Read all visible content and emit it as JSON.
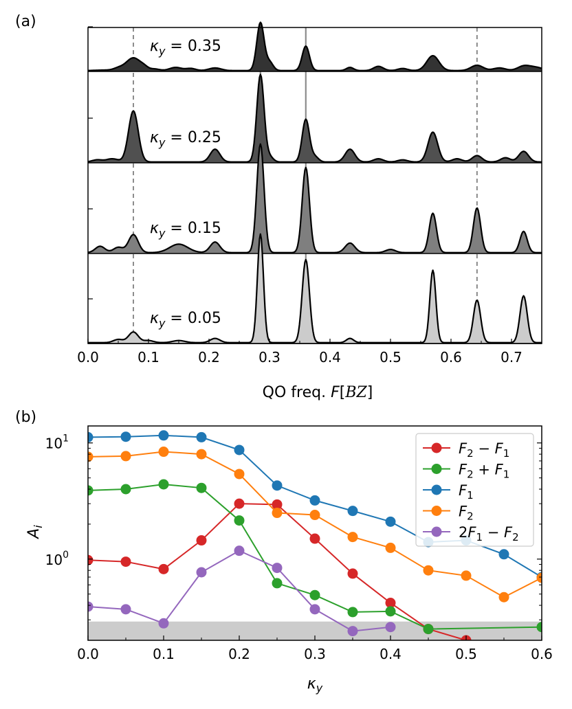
{
  "chart_data": [
    {
      "type": "area",
      "panel_label": "(a)",
      "xlabel": "QO freq. F[BZ]",
      "xlabel_parts": {
        "prefix": "QO freq. ",
        "var": "F",
        "bracket_open": "[",
        "unit": "BZ",
        "bracket_close": "]"
      },
      "xlim": [
        0.0,
        0.75
      ],
      "xticks": [
        0.0,
        0.1,
        0.2,
        0.3,
        0.4,
        0.5,
        0.6,
        0.7
      ],
      "xtick_labels": [
        "0.0",
        "0.1",
        "0.2",
        "0.3",
        "0.4",
        "0.5",
        "0.6",
        "0.7"
      ],
      "reference_lines": {
        "solid_gray": [
          0.285,
          0.36
        ],
        "dashed_gray": [
          0.075,
          0.643
        ]
      },
      "series": [
        {
          "label": "κy = 0.35",
          "label_parts": {
            "var": "κ",
            "sub": "y",
            "eq": " = 0.35"
          },
          "fill": "#333333",
          "peaks": [
            [
              0.02,
              0.012,
              0.003
            ],
            [
              0.035,
              0.012,
              0.003
            ],
            [
              0.05,
              0.008,
              0.02
            ],
            [
              0.075,
              0.012,
              0.12
            ],
            [
              0.093,
              0.006,
              0.02
            ],
            [
              0.11,
              0.008,
              0.015
            ],
            [
              0.145,
              0.01,
              0.03
            ],
            [
              0.17,
              0.008,
              0.02
            ],
            [
              0.21,
              0.01,
              0.025
            ],
            [
              0.285,
              0.006,
              0.45
            ],
            [
              0.3,
              0.006,
              0.08
            ],
            [
              0.36,
              0.006,
              0.23
            ],
            [
              0.433,
              0.006,
              0.03
            ],
            [
              0.48,
              0.008,
              0.04
            ],
            [
              0.52,
              0.008,
              0.02
            ],
            [
              0.57,
              0.01,
              0.14
            ],
            [
              0.643,
              0.01,
              0.05
            ],
            [
              0.68,
              0.01,
              0.025
            ],
            [
              0.72,
              0.01,
              0.04
            ],
            [
              0.74,
              0.012,
              0.03
            ]
          ]
        },
        {
          "label": "κy = 0.25",
          "label_parts": {
            "var": "κ",
            "sub": "y",
            "eq": " = 0.25"
          },
          "fill": "#505050",
          "peaks": [
            [
              0.015,
              0.008,
              0.02
            ],
            [
              0.04,
              0.01,
              0.03
            ],
            [
              0.075,
              0.008,
              0.48
            ],
            [
              0.21,
              0.008,
              0.12
            ],
            [
              0.285,
              0.006,
              0.82
            ],
            [
              0.3,
              0.006,
              0.05
            ],
            [
              0.36,
              0.006,
              0.4
            ],
            [
              0.375,
              0.006,
              0.05
            ],
            [
              0.433,
              0.008,
              0.12
            ],
            [
              0.48,
              0.008,
              0.03
            ],
            [
              0.52,
              0.008,
              0.02
            ],
            [
              0.57,
              0.008,
              0.28
            ],
            [
              0.61,
              0.008,
              0.03
            ],
            [
              0.643,
              0.008,
              0.06
            ],
            [
              0.69,
              0.008,
              0.04
            ],
            [
              0.72,
              0.008,
              0.1
            ]
          ]
        },
        {
          "label": "κy = 0.15",
          "label_parts": {
            "var": "κ",
            "sub": "y",
            "eq": " = 0.15"
          },
          "fill": "#7f7f7f",
          "peaks": [
            [
              0.02,
              0.008,
              0.06
            ],
            [
              0.05,
              0.008,
              0.05
            ],
            [
              0.075,
              0.008,
              0.17
            ],
            [
              0.15,
              0.015,
              0.08
            ],
            [
              0.21,
              0.008,
              0.1
            ],
            [
              0.285,
              0.006,
              1.02
            ],
            [
              0.36,
              0.006,
              0.8
            ],
            [
              0.433,
              0.008,
              0.09
            ],
            [
              0.5,
              0.008,
              0.03
            ],
            [
              0.57,
              0.006,
              0.37
            ],
            [
              0.643,
              0.006,
              0.42
            ],
            [
              0.72,
              0.006,
              0.2
            ]
          ]
        },
        {
          "label": "κy = 0.05",
          "label_parts": {
            "var": "κ",
            "sub": "y",
            "eq": " = 0.05"
          },
          "fill": "#cccccc",
          "peaks": [
            [
              0.05,
              0.008,
              0.03
            ],
            [
              0.075,
              0.008,
              0.1
            ],
            [
              0.1,
              0.008,
              0.02
            ],
            [
              0.15,
              0.01,
              0.02
            ],
            [
              0.21,
              0.008,
              0.04
            ],
            [
              0.285,
              0.005,
              1.02
            ],
            [
              0.36,
              0.006,
              0.78
            ],
            [
              0.433,
              0.006,
              0.04
            ],
            [
              0.57,
              0.005,
              0.68
            ],
            [
              0.643,
              0.006,
              0.4
            ],
            [
              0.72,
              0.006,
              0.44
            ]
          ]
        }
      ]
    },
    {
      "type": "line",
      "panel_label": "(b)",
      "xlabel": "κy",
      "xlabel_parts": {
        "var": "κ",
        "sub": "y"
      },
      "ylabel": "Ai",
      "ylabel_parts": {
        "var": "A",
        "sub": "i"
      },
      "yscale": "log",
      "xlim": [
        0.0,
        0.6
      ],
      "ylim": [
        0.2,
        14
      ],
      "xticks": [
        0.0,
        0.1,
        0.2,
        0.3,
        0.4,
        0.5,
        0.6
      ],
      "xtick_labels": [
        "0.0",
        "0.1",
        "0.2",
        "0.3",
        "0.4",
        "0.5",
        "0.6"
      ],
      "yticks": [
        {
          "value": 1,
          "base": "10",
          "exp": "0"
        },
        {
          "value": 10,
          "base": "10",
          "exp": "1"
        }
      ],
      "shaded_band": {
        "y": [
          0.2,
          0.29
        ],
        "color": "#cccccc"
      },
      "legend_position": "top-right",
      "series": [
        {
          "name": "F2 − F1",
          "legend_parts": {
            "a": "F",
            "a_sub": "2",
            "op": " − ",
            "b": "F",
            "b_sub": "1"
          },
          "color": "#d62728",
          "x": [
            0.0,
            0.05,
            0.1,
            0.15,
            0.2,
            0.25,
            0.3,
            0.35,
            0.4,
            0.45,
            0.5
          ],
          "y": [
            0.98,
            0.95,
            0.82,
            1.45,
            3.0,
            2.95,
            1.5,
            0.75,
            0.42,
            0.25,
            0.2
          ]
        },
        {
          "name": "F2 + F1",
          "legend_parts": {
            "a": "F",
            "a_sub": "2",
            "op": " + ",
            "b": "F",
            "b_sub": "1"
          },
          "color": "#2ca02c",
          "x": [
            0.0,
            0.05,
            0.1,
            0.15,
            0.2,
            0.25,
            0.3,
            0.35,
            0.4,
            0.45,
            0.6
          ],
          "y": [
            3.9,
            4.0,
            4.4,
            4.1,
            2.15,
            0.62,
            0.49,
            0.35,
            0.355,
            0.25,
            0.26
          ]
        },
        {
          "name": "F1",
          "legend_parts": {
            "a": "F",
            "a_sub": "1"
          },
          "color": "#1f77b4",
          "x": [
            0.0,
            0.05,
            0.1,
            0.15,
            0.2,
            0.25,
            0.3,
            0.35,
            0.4,
            0.45,
            0.5,
            0.55,
            0.6
          ],
          "y": [
            11.2,
            11.3,
            11.6,
            11.2,
            8.7,
            4.3,
            3.2,
            2.6,
            2.1,
            1.4,
            1.45,
            1.1,
            0.7
          ]
        },
        {
          "name": "F2",
          "legend_parts": {
            "a": "F",
            "a_sub": "2"
          },
          "color": "#ff7f0e",
          "x": [
            0.0,
            0.05,
            0.1,
            0.15,
            0.2,
            0.25,
            0.3,
            0.35,
            0.4,
            0.45,
            0.5,
            0.55,
            0.6
          ],
          "y": [
            7.6,
            7.7,
            8.4,
            8.0,
            5.4,
            2.5,
            2.4,
            1.55,
            1.25,
            0.8,
            0.72,
            0.47,
            0.69
          ]
        },
        {
          "name": "2F1 − F2",
          "legend_parts": {
            "coef": "2",
            "a": "F",
            "a_sub": "1",
            "op": " − ",
            "b": "F",
            "b_sub": "2"
          },
          "color": "#9467bd",
          "x": [
            0.0,
            0.05,
            0.1,
            0.15,
            0.2,
            0.25,
            0.3,
            0.35,
            0.4
          ],
          "y": [
            0.39,
            0.37,
            0.28,
            0.77,
            1.18,
            0.84,
            0.37,
            0.24,
            0.26
          ]
        }
      ]
    }
  ]
}
